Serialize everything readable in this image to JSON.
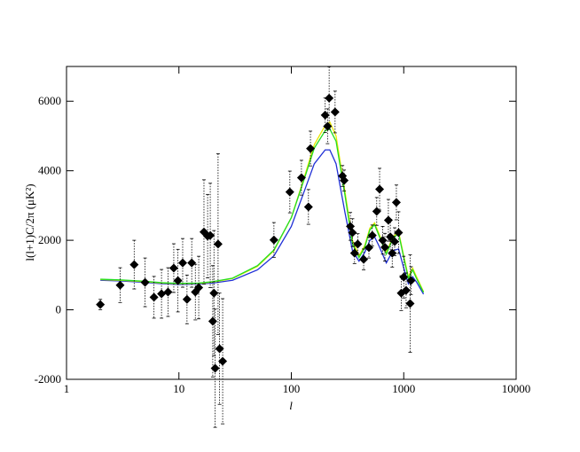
{
  "chart_data": {
    "type": "scatter",
    "x_label": "l",
    "y_label": "l(l+1)C/2π (μK²)",
    "log_x": true,
    "xlim": [
      1,
      10000
    ],
    "xticks": [
      1,
      10,
      100,
      1000,
      10000
    ],
    "ylim": [
      -2000,
      7000
    ],
    "yticks": [
      -2000,
      0,
      2000,
      4000,
      6000
    ],
    "series": [
      {
        "type": "scatter",
        "color": "#000000",
        "x": [
          2,
          3,
          4,
          5,
          6,
          7,
          8,
          9,
          9.8,
          10.8,
          11.8,
          13,
          14,
          15,
          16.7,
          18,
          19,
          20,
          20.5,
          21,
          22.3,
          23,
          24.5,
          70,
          97,
          123,
          142,
          148,
          200,
          210,
          217,
          245,
          285,
          295,
          335,
          350,
          365,
          390,
          440,
          490,
          525,
          575,
          610,
          650,
          680,
          730,
          760,
          790,
          830,
          860,
          900,
          950,
          1000,
          1050,
          1140,
          1160
        ],
        "values": [
          150,
          710,
          1300,
          790,
          360,
          460,
          510,
          1200,
          840,
          1350,
          300,
          1350,
          510,
          640,
          2240,
          2120,
          2140,
          -330,
          480,
          -1680,
          1890,
          -1120,
          -1480,
          2010,
          3390,
          3800,
          2960,
          4640,
          5600,
          5280,
          6090,
          5690,
          3850,
          3720,
          2400,
          2220,
          1630,
          1890,
          1450,
          1790,
          2140,
          2830,
          3470,
          2000,
          1800,
          2575,
          2100,
          1630,
          1960,
          3090,
          2220,
          480,
          940,
          560,
          180,
          840
        ],
        "errors": [
          150,
          500,
          700,
          700,
          600,
          700,
          700,
          700,
          900,
          700,
          700,
          700,
          800,
          900,
          1500,
          1200,
          1500,
          1600,
          1800,
          1700,
          2600,
          1600,
          1800,
          500,
          600,
          500,
          500,
          500,
          500,
          500,
          900,
          600,
          300,
          300,
          400,
          400,
          300,
          300,
          300,
          300,
          300,
          400,
          600,
          400,
          400,
          600,
          500,
          400,
          400,
          500,
          600,
          500,
          600,
          500,
          1400,
          400
        ]
      },
      {
        "type": "line",
        "color": "#1f2fd6",
        "x": [
          2,
          3,
          5,
          7,
          10,
          15,
          20,
          30,
          50,
          70,
          100,
          130,
          160,
          200,
          220,
          250,
          300,
          350,
          400,
          450,
          500,
          550,
          600,
          700,
          800,
          900,
          1000,
          1100,
          1200,
          1300,
          1500
        ],
        "values": [
          850,
          830,
          790,
          750,
          730,
          740,
          770,
          850,
          1150,
          1550,
          2400,
          3400,
          4200,
          4600,
          4600,
          4200,
          2800,
          1700,
          1400,
          1650,
          2000,
          2100,
          1850,
          1350,
          1700,
          1750,
          1200,
          750,
          950,
          800,
          450
        ]
      },
      {
        "type": "line",
        "color": "#e8e800",
        "x": [
          2,
          3,
          5,
          7,
          10,
          15,
          20,
          30,
          50,
          70,
          100,
          130,
          160,
          200,
          220,
          250,
          300,
          350,
          400,
          450,
          500,
          550,
          600,
          700,
          800,
          900,
          1000,
          1100,
          1200,
          1300,
          1500
        ],
        "values": [
          870,
          850,
          810,
          770,
          750,
          760,
          800,
          900,
          1250,
          1700,
          2650,
          3800,
          4750,
          5300,
          5400,
          5000,
          3400,
          2000,
          1550,
          1850,
          2350,
          2500,
          2200,
          1650,
          2100,
          2250,
          1550,
          950,
          1200,
          950,
          520
        ]
      },
      {
        "type": "line",
        "color": "#22dd22",
        "x": [
          2,
          3,
          5,
          7,
          10,
          15,
          20,
          30,
          50,
          70,
          100,
          130,
          160,
          200,
          220,
          250,
          300,
          350,
          400,
          450,
          500,
          550,
          600,
          700,
          800,
          900,
          1000,
          1100,
          1200,
          1300,
          1500
        ],
        "values": [
          880,
          860,
          820,
          780,
          760,
          770,
          810,
          910,
          1270,
          1720,
          2650,
          3750,
          4650,
          5150,
          5200,
          4850,
          3300,
          1900,
          1500,
          1800,
          2300,
          2450,
          2150,
          1600,
          2050,
          2200,
          1500,
          900,
          1150,
          900,
          500
        ]
      }
    ]
  }
}
